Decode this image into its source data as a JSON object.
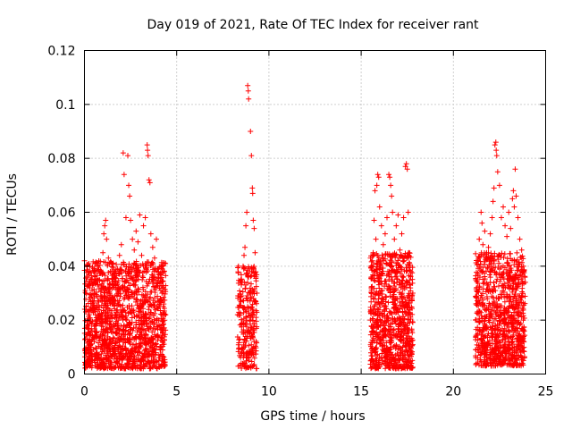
{
  "chart_data": {
    "type": "scatter",
    "title": "Day 019 of 2021, Rate Of TEC Index for receiver rant",
    "xlabel": "GPS time / hours",
    "ylabel": "ROTI / TECUs",
    "xlim": [
      0,
      25
    ],
    "ylim": [
      0,
      0.12
    ],
    "x_ticks": [
      0,
      5,
      10,
      15,
      20,
      25
    ],
    "y_ticks": [
      0,
      0.02,
      0.04,
      0.06,
      0.08,
      0.1,
      0.12
    ],
    "x_tick_labels": [
      "0",
      "5",
      "10",
      "15",
      "20",
      "25"
    ],
    "y_tick_labels": [
      "0",
      "0.02",
      "0.04",
      "0.06",
      "0.08",
      "0.1",
      "0.12"
    ],
    "grid": true,
    "marker": "plus",
    "color": "#ff0000",
    "series": [
      {
        "points": [
          [
            0.0,
            0.042
          ],
          [
            0.05,
            0.031
          ],
          [
            0.1,
            0.025
          ],
          [
            0.15,
            0.036
          ],
          [
            0.2,
            0.018
          ],
          [
            0.3,
            0.038
          ],
          [
            0.4,
            0.029
          ],
          [
            0.5,
            0.034
          ],
          [
            0.6,
            0.022
          ],
          [
            0.7,
            0.04
          ],
          [
            0.8,
            0.035
          ],
          [
            0.9,
            0.028
          ],
          [
            1.0,
            0.045
          ],
          [
            1.05,
            0.052
          ],
          [
            1.1,
            0.055
          ],
          [
            1.15,
            0.057
          ],
          [
            1.2,
            0.05
          ],
          [
            1.3,
            0.043
          ],
          [
            1.4,
            0.038
          ],
          [
            1.5,
            0.041
          ],
          [
            1.6,
            0.036
          ],
          [
            1.7,
            0.032
          ],
          [
            1.8,
            0.039
          ],
          [
            1.9,
            0.044
          ],
          [
            2.0,
            0.048
          ],
          [
            2.1,
            0.082
          ],
          [
            2.15,
            0.074
          ],
          [
            2.25,
            0.058
          ],
          [
            2.35,
            0.081
          ],
          [
            2.4,
            0.07
          ],
          [
            2.45,
            0.066
          ],
          [
            2.5,
            0.057
          ],
          [
            2.6,
            0.05
          ],
          [
            2.7,
            0.046
          ],
          [
            2.8,
            0.053
          ],
          [
            2.9,
            0.049
          ],
          [
            3.0,
            0.059
          ],
          [
            3.1,
            0.044
          ],
          [
            3.2,
            0.055
          ],
          [
            3.3,
            0.058
          ],
          [
            3.4,
            0.085
          ],
          [
            3.42,
            0.083
          ],
          [
            3.45,
            0.081
          ],
          [
            3.5,
            0.072
          ],
          [
            3.55,
            0.071
          ],
          [
            3.6,
            0.052
          ],
          [
            3.7,
            0.047
          ],
          [
            3.8,
            0.043
          ],
          [
            3.9,
            0.05
          ],
          [
            4.0,
            0.038
          ],
          [
            4.1,
            0.034
          ],
          [
            4.2,
            0.03
          ],
          [
            4.3,
            0.026
          ],
          [
            4.4,
            0.022
          ],
          [
            8.3,
            0.022
          ],
          [
            8.4,
            0.025
          ],
          [
            8.5,
            0.029
          ],
          [
            8.55,
            0.034
          ],
          [
            8.6,
            0.04
          ],
          [
            8.65,
            0.044
          ],
          [
            8.7,
            0.047
          ],
          [
            8.75,
            0.055
          ],
          [
            8.8,
            0.06
          ],
          [
            8.85,
            0.107
          ],
          [
            8.88,
            0.105
          ],
          [
            8.9,
            0.102
          ],
          [
            8.95,
            0.038
          ],
          [
            9.0,
            0.09
          ],
          [
            9.05,
            0.081
          ],
          [
            9.1,
            0.069
          ],
          [
            9.12,
            0.067
          ],
          [
            9.15,
            0.057
          ],
          [
            9.2,
            0.054
          ],
          [
            9.25,
            0.045
          ],
          [
            9.3,
            0.036
          ],
          [
            9.35,
            0.03
          ],
          [
            15.5,
            0.02
          ],
          [
            15.6,
            0.036
          ],
          [
            15.65,
            0.045
          ],
          [
            15.7,
            0.057
          ],
          [
            15.75,
            0.068
          ],
          [
            15.8,
            0.05
          ],
          [
            15.85,
            0.07
          ],
          [
            15.9,
            0.074
          ],
          [
            15.95,
            0.073
          ],
          [
            16.0,
            0.062
          ],
          [
            16.1,
            0.055
          ],
          [
            16.2,
            0.048
          ],
          [
            16.3,
            0.052
          ],
          [
            16.4,
            0.058
          ],
          [
            16.5,
            0.074
          ],
          [
            16.55,
            0.073
          ],
          [
            16.6,
            0.07
          ],
          [
            16.65,
            0.066
          ],
          [
            16.7,
            0.06
          ],
          [
            16.8,
            0.05
          ],
          [
            16.9,
            0.055
          ],
          [
            17.0,
            0.059
          ],
          [
            17.1,
            0.046
          ],
          [
            17.2,
            0.052
          ],
          [
            17.3,
            0.058
          ],
          [
            17.4,
            0.077
          ],
          [
            17.45,
            0.078
          ],
          [
            17.5,
            0.076
          ],
          [
            17.55,
            0.06
          ],
          [
            17.6,
            0.045
          ],
          [
            17.7,
            0.038
          ],
          [
            17.8,
            0.03
          ],
          [
            21.2,
            0.02
          ],
          [
            21.3,
            0.035
          ],
          [
            21.35,
            0.042
          ],
          [
            21.4,
            0.05
          ],
          [
            21.5,
            0.06
          ],
          [
            21.55,
            0.056
          ],
          [
            21.6,
            0.048
          ],
          [
            21.7,
            0.053
          ],
          [
            21.8,
            0.045
          ],
          [
            21.9,
            0.047
          ],
          [
            22.0,
            0.052
          ],
          [
            22.1,
            0.058
          ],
          [
            22.15,
            0.064
          ],
          [
            22.2,
            0.069
          ],
          [
            22.25,
            0.085
          ],
          [
            22.3,
            0.086
          ],
          [
            22.32,
            0.083
          ],
          [
            22.35,
            0.081
          ],
          [
            22.4,
            0.075
          ],
          [
            22.5,
            0.07
          ],
          [
            22.6,
            0.058
          ],
          [
            22.7,
            0.062
          ],
          [
            22.8,
            0.055
          ],
          [
            22.9,
            0.051
          ],
          [
            23.0,
            0.06
          ],
          [
            23.1,
            0.054
          ],
          [
            23.2,
            0.065
          ],
          [
            23.25,
            0.068
          ],
          [
            23.3,
            0.062
          ],
          [
            23.35,
            0.076
          ],
          [
            23.4,
            0.066
          ],
          [
            23.5,
            0.058
          ],
          [
            23.6,
            0.05
          ],
          [
            23.7,
            0.046
          ],
          [
            23.8,
            0.04
          ],
          [
            23.9,
            0.034
          ]
        ],
        "dense_bands": [
          {
            "x": [
              0.0,
              4.4
            ],
            "y": [
              0.002,
              0.042
            ],
            "count": 1500
          },
          {
            "x": [
              8.3,
              9.35
            ],
            "y": [
              0.002,
              0.04
            ],
            "count": 260
          },
          {
            "x": [
              15.5,
              17.8
            ],
            "y": [
              0.002,
              0.045
            ],
            "count": 850
          },
          {
            "x": [
              21.2,
              23.9
            ],
            "y": [
              0.003,
              0.045
            ],
            "count": 950
          }
        ]
      }
    ]
  }
}
